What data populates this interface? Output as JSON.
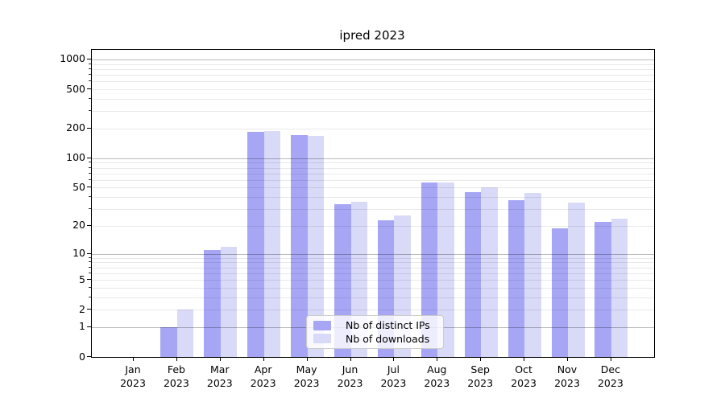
{
  "chart_data": {
    "type": "bar",
    "title": "ipred 2023",
    "xlabel": "",
    "ylabel": "",
    "yscale": "log1p",
    "ylim": [
      0,
      1250
    ],
    "yticks": [
      0,
      1,
      2,
      5,
      10,
      20,
      50,
      100,
      200,
      500,
      1000
    ],
    "grid": "horizontal",
    "grid_major_color": "#b4b4b4",
    "grid_minor_color": "#e8e8e8",
    "legend_position": "lower center",
    "categories": [
      {
        "label": "Jan",
        "year": "2023"
      },
      {
        "label": "Feb",
        "year": "2023"
      },
      {
        "label": "Mar",
        "year": "2023"
      },
      {
        "label": "Apr",
        "year": "2023"
      },
      {
        "label": "May",
        "year": "2023"
      },
      {
        "label": "Jun",
        "year": "2023"
      },
      {
        "label": "Jul",
        "year": "2023"
      },
      {
        "label": "Aug",
        "year": "2023"
      },
      {
        "label": "Sep",
        "year": "2023"
      },
      {
        "label": "Oct",
        "year": "2023"
      },
      {
        "label": "Nov",
        "year": "2023"
      },
      {
        "label": "Dec",
        "year": "2023"
      }
    ],
    "series": [
      {
        "name": "Nb of distinct IPs",
        "key": "ips",
        "color": "#a6a6f4",
        "values": [
          0,
          1,
          11,
          184,
          172,
          34,
          23,
          56,
          45,
          37,
          19,
          22
        ]
      },
      {
        "name": "Nb of downloads",
        "key": "downloads",
        "color": "#d9d9f8",
        "values": [
          0,
          2,
          12,
          188,
          169,
          36,
          26,
          57,
          50,
          44,
          35,
          24
        ]
      }
    ]
  }
}
